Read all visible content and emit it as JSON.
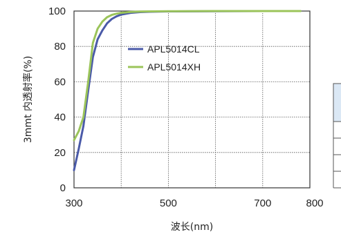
{
  "chart_data": {
    "type": "line",
    "xlabel": "波长(nm)",
    "ylabel": "3mmt 内透射率(%)",
    "xlim": [
      300,
      800
    ],
    "ylim": [
      0,
      100
    ],
    "xticks": [
      300,
      500,
      700,
      800
    ],
    "yticks": [
      0,
      20,
      40,
      60,
      80,
      100
    ],
    "grid": true,
    "legend": "upper-middle",
    "series": [
      {
        "name": "APL5014CL",
        "color": "#4a5aa8",
        "x": [
          300,
          310,
          320,
          330,
          340,
          350,
          360,
          370,
          380,
          390,
          400,
          420,
          440,
          460,
          500,
          600,
          700,
          780
        ],
        "y": [
          10,
          22,
          35,
          55,
          74,
          84,
          89,
          93,
          95.5,
          97,
          98,
          99,
          99.4,
          99.6,
          99.8,
          99.9,
          100,
          100
        ]
      },
      {
        "name": "APL5014XH",
        "color": "#9bc45a",
        "x": [
          300,
          310,
          320,
          330,
          340,
          350,
          360,
          370,
          380,
          390,
          400,
          420,
          440,
          460,
          500,
          600,
          700,
          780
        ],
        "y": [
          27,
          32,
          40,
          60,
          82,
          90,
          94,
          96.5,
          97.8,
          98.5,
          99,
          99.5,
          99.7,
          99.8,
          99.9,
          100,
          100,
          100
        ]
      }
    ]
  }
}
